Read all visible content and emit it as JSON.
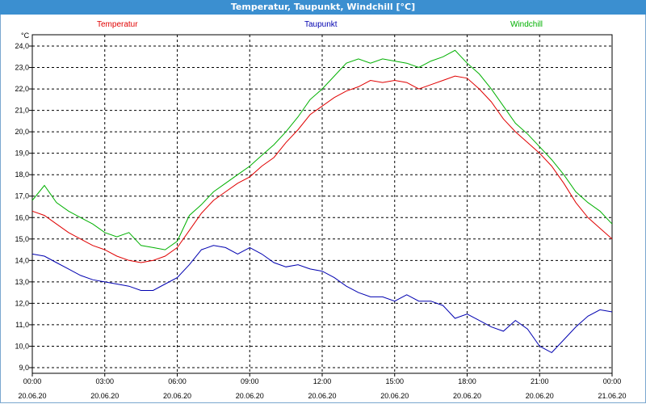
{
  "window": {
    "title": "Temperatur, Taupunkt, Windchill [°C]"
  },
  "chart_data": {
    "type": "line",
    "ylabel": "°C",
    "ylim": [
      9.0,
      24.0
    ],
    "xlim": [
      "2020-06-20 00:00",
      "2020-06-21 00:00"
    ],
    "grid": true,
    "y_ticks": [
      "24,0",
      "23,0",
      "22,0",
      "21,0",
      "20,0",
      "19,0",
      "18,0",
      "17,0",
      "16,0",
      "15,0",
      "14,0",
      "13,0",
      "12,0",
      "11,0",
      "10,0",
      "9,0"
    ],
    "x_ticks": [
      {
        "time": "00:00",
        "date": "20.06.20"
      },
      {
        "time": "03:00",
        "date": "20.06.20"
      },
      {
        "time": "06:00",
        "date": "20.06.20"
      },
      {
        "time": "09:00",
        "date": "20.06.20"
      },
      {
        "time": "12:00",
        "date": "20.06.20"
      },
      {
        "time": "15:00",
        "date": "20.06.20"
      },
      {
        "time": "18:00",
        "date": "20.06.20"
      },
      {
        "time": "21:00",
        "date": "20.06.20"
      },
      {
        "time": "00:00",
        "date": "21.06.20"
      }
    ],
    "x": [
      "00:00",
      "00:30",
      "01:00",
      "01:30",
      "02:00",
      "02:30",
      "03:00",
      "03:30",
      "04:00",
      "04:30",
      "05:00",
      "05:30",
      "06:00",
      "06:30",
      "07:00",
      "07:30",
      "08:00",
      "08:30",
      "09:00",
      "09:30",
      "10:00",
      "10:30",
      "11:00",
      "11:30",
      "12:00",
      "12:30",
      "13:00",
      "13:30",
      "14:00",
      "14:30",
      "15:00",
      "15:30",
      "16:00",
      "16:30",
      "17:00",
      "17:30",
      "18:00",
      "18:30",
      "19:00",
      "19:30",
      "20:00",
      "20:30",
      "21:00",
      "21:30",
      "22:00",
      "22:30",
      "23:00",
      "23:30",
      "24:00"
    ],
    "series": [
      {
        "name": "Temperatur",
        "color": "#e00000",
        "values": [
          16.3,
          16.1,
          15.7,
          15.3,
          15.0,
          14.7,
          14.5,
          14.2,
          14.0,
          13.9,
          14.0,
          14.2,
          14.6,
          15.4,
          16.2,
          16.8,
          17.2,
          17.6,
          17.9,
          18.4,
          18.8,
          19.5,
          20.1,
          20.8,
          21.2,
          21.6,
          21.9,
          22.1,
          22.4,
          22.3,
          22.4,
          22.3,
          22.0,
          22.2,
          22.4,
          22.6,
          22.5,
          22.0,
          21.4,
          20.6,
          20.0,
          19.5,
          19.0,
          18.4,
          17.6,
          16.7,
          16.0,
          15.5,
          15.0
        ]
      },
      {
        "name": "Taupunkt",
        "color": "#0000b0",
        "values": [
          14.3,
          14.2,
          13.9,
          13.6,
          13.3,
          13.1,
          13.0,
          12.9,
          12.8,
          12.6,
          12.6,
          12.9,
          13.2,
          13.8,
          14.5,
          14.7,
          14.6,
          14.3,
          14.6,
          14.3,
          13.9,
          13.7,
          13.8,
          13.6,
          13.5,
          13.2,
          12.8,
          12.5,
          12.3,
          12.3,
          12.1,
          12.4,
          12.1,
          12.1,
          11.9,
          11.3,
          11.5,
          11.2,
          10.9,
          10.7,
          11.2,
          10.8,
          10.0,
          9.7,
          10.3,
          10.9,
          11.4,
          11.7,
          11.6
        ]
      },
      {
        "name": "Windchill",
        "color": "#00b000",
        "values": [
          16.8,
          17.5,
          16.7,
          16.3,
          16.0,
          15.7,
          15.3,
          15.1,
          15.3,
          14.7,
          14.6,
          14.5,
          14.9,
          16.1,
          16.6,
          17.2,
          17.6,
          18.0,
          18.4,
          18.9,
          19.4,
          20.0,
          20.7,
          21.5,
          22.0,
          22.6,
          23.2,
          23.4,
          23.2,
          23.4,
          23.3,
          23.2,
          23.0,
          23.3,
          23.5,
          23.8,
          23.2,
          22.7,
          22.0,
          21.2,
          20.4,
          19.9,
          19.3,
          18.7,
          18.0,
          17.2,
          16.7,
          16.3,
          15.7
        ]
      }
    ]
  }
}
